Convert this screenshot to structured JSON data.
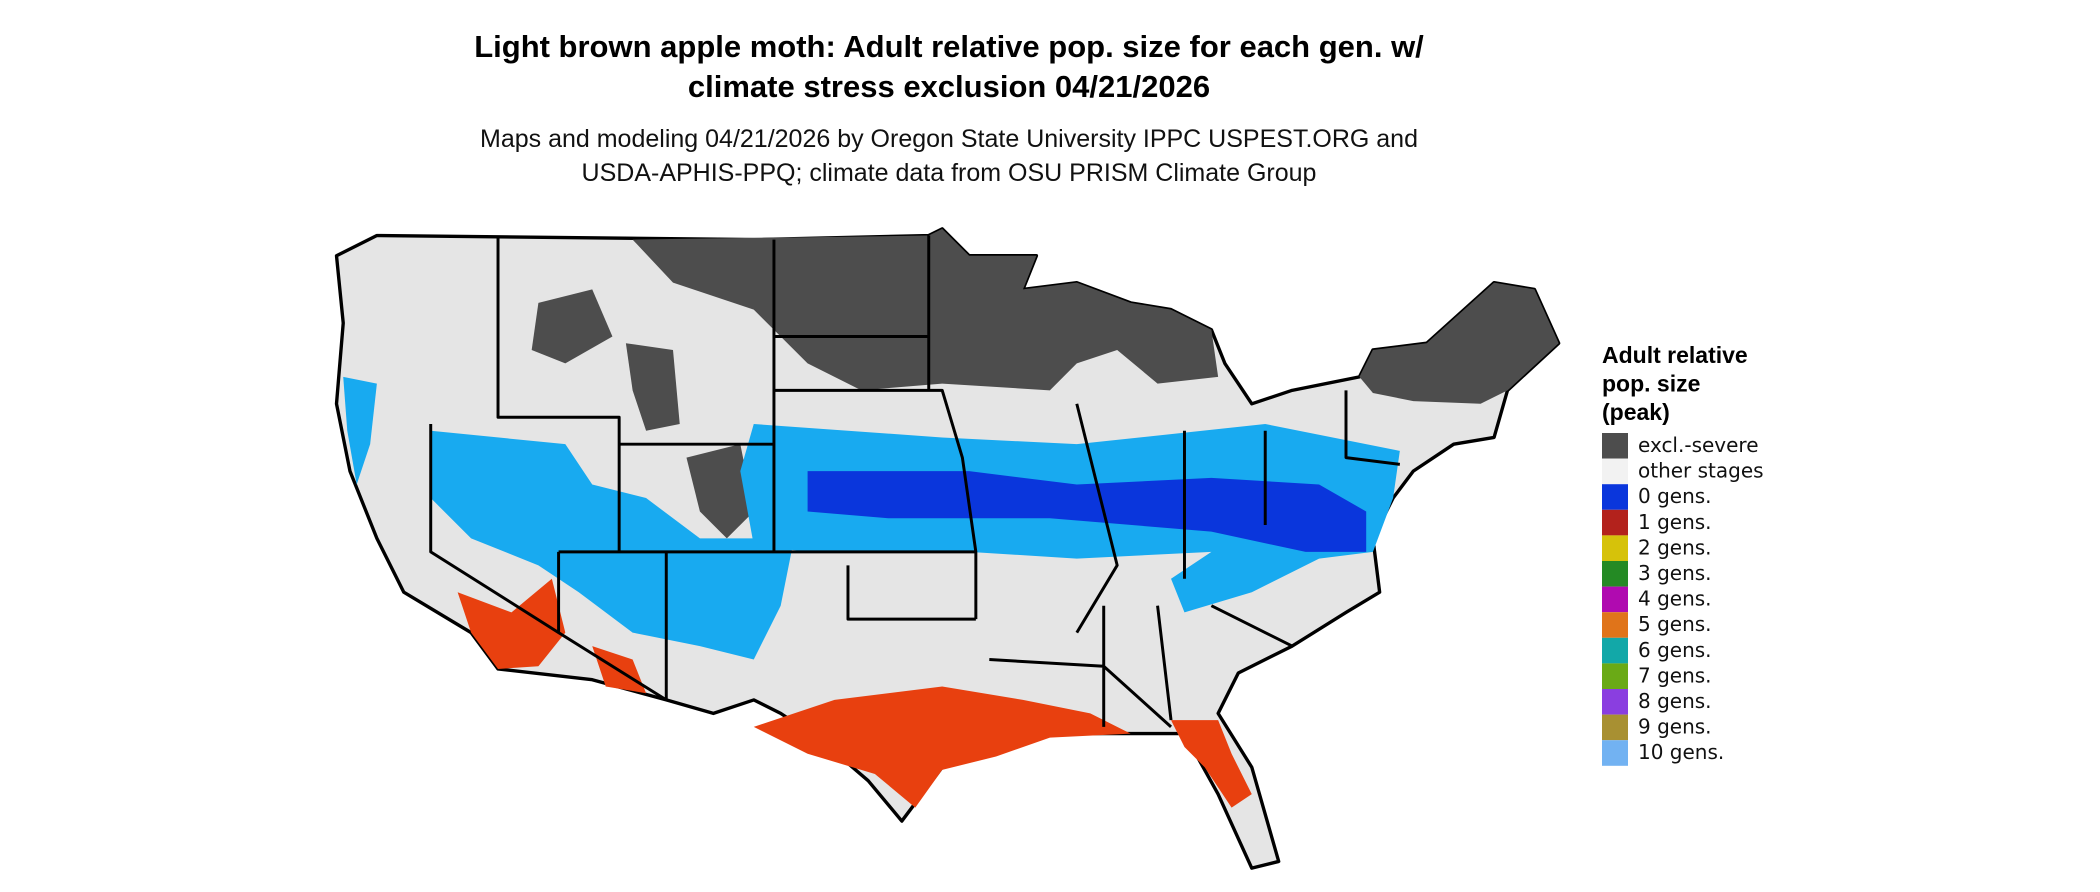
{
  "title": {
    "lines": [
      "Light brown apple moth: Adult relative pop. size for each gen. w/",
      "climate stress exclusion 04/21/2026"
    ]
  },
  "subtitle": {
    "lines": [
      "Maps and modeling 04/21/2026 by Oregon State University IPPC USPEST.ORG and",
      "USDA-APHIS-PPQ; climate data from OSU PRISM Climate Group"
    ]
  },
  "legend": {
    "title_lines": [
      "Adult relative",
      "pop. size",
      "(peak)"
    ],
    "items": [
      {
        "label": "excl.-severe",
        "color": "#4d4d4d"
      },
      {
        "label": "other stages",
        "color": "#f2f2f2"
      },
      {
        "label": "0 gens.",
        "color": "#0a36dc"
      },
      {
        "label": "1 gens.",
        "color": "#b3221c"
      },
      {
        "label": "2 gens.",
        "color": "#d6c20a"
      },
      {
        "label": "3 gens.",
        "color": "#248a24"
      },
      {
        "label": "4 gens.",
        "color": "#b00ab0"
      },
      {
        "label": "5 gens.",
        "color": "#e0741a"
      },
      {
        "label": "6 gens.",
        "color": "#12a8a8"
      },
      {
        "label": "7 gens.",
        "color": "#6aaa16"
      },
      {
        "label": "8 gens.",
        "color": "#8a3ee0"
      },
      {
        "label": "9 gens.",
        "color": "#a89032"
      },
      {
        "label": "10 gens.",
        "color": "#72b2f2"
      }
    ]
  }
}
